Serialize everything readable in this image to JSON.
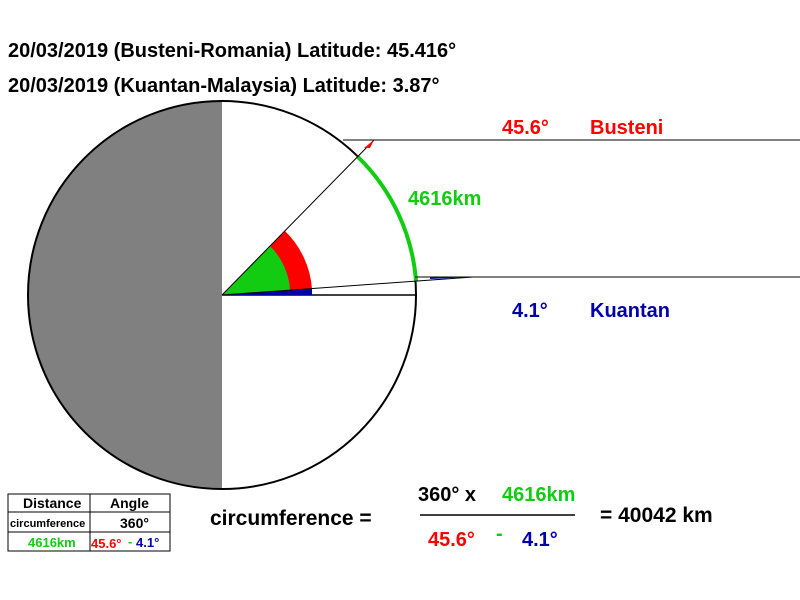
{
  "header": {
    "lines": [
      "20/03/2019 (Busteni-Romania) Latitude: 45.416°",
      "20/03/2019  (Kuantan-Malaysia) Latitude: 3.87°"
    ]
  },
  "diagram": {
    "busteni_angle": "45.6°",
    "busteni_label": "Busteni",
    "arc_length": "4616km",
    "kuantan_angle": "4.1°",
    "kuantan_label": "Kuantan"
  },
  "formula": {
    "lhs": "circumference =",
    "numerator_a": "360° x",
    "numerator_b": "4616km",
    "denominator_a": "45.6°",
    "minus": "-",
    "denominator_b": "4.1°",
    "result": "= 40042 km"
  },
  "table": {
    "header": [
      "Distance",
      "Angle"
    ],
    "rows": [
      [
        "circumference",
        "360°"
      ],
      [
        "4616km",
        "45.6°",
        "-",
        "4.1°"
      ]
    ]
  }
}
